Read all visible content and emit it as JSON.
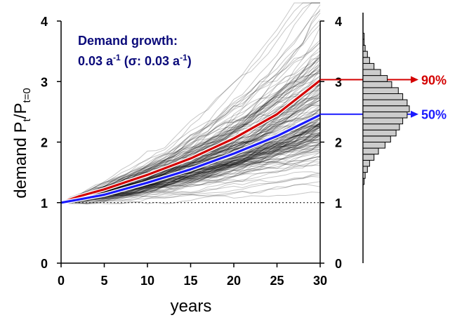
{
  "chart_data": [
    {
      "type": "line",
      "title": "",
      "annotation_line1": "Demand growth:",
      "annotation_line2_prefix": "0.03 a",
      "annotation_line2_mid": " (σ: 0.03 a",
      "annotation_line2_suffix": ")",
      "annotation_exponent": "-1",
      "xlabel": "years",
      "ylabel_main": "demand P",
      "ylabel_sub1": "t",
      "ylabel_slash": "/P",
      "ylabel_sub2": "t=0",
      "xlim": [
        0,
        30
      ],
      "ylim": [
        0,
        4
      ],
      "x_ticks": [
        "0",
        "5",
        "10",
        "15",
        "20",
        "25",
        "30"
      ],
      "y_ticks": [
        "0",
        "1",
        "2",
        "3",
        "4"
      ],
      "right_y_ticks": [
        "0",
        "1",
        "2",
        "3",
        "4"
      ],
      "baseline_y": 1,
      "ensemble": {
        "count": 200,
        "mean_growth": 0.03,
        "sigma": 0.03,
        "color": "#000000"
      },
      "series": [
        {
          "name": "90%",
          "color": "#d40000",
          "x": [
            0,
            2,
            5,
            10,
            15,
            20,
            25,
            30
          ],
          "y": [
            1.0,
            1.1,
            1.22,
            1.46,
            1.73,
            2.06,
            2.46,
            3.02
          ]
        },
        {
          "name": "50%",
          "color": "#1a1aff",
          "x": [
            0,
            2,
            5,
            10,
            15,
            20,
            25,
            30
          ],
          "y": [
            1.0,
            1.05,
            1.13,
            1.33,
            1.55,
            1.81,
            2.1,
            2.45
          ]
        }
      ],
      "grid": false,
      "legend": "right"
    },
    {
      "type": "histogram",
      "orientation": "horizontal",
      "bin_edges": [
        1.3,
        1.4,
        1.5,
        1.6,
        1.7,
        1.8,
        1.9,
        2.0,
        2.1,
        2.2,
        2.3,
        2.4,
        2.5,
        2.6,
        2.7,
        2.8,
        2.9,
        3.0,
        3.1,
        3.2,
        3.3,
        3.4,
        3.5,
        3.6,
        3.7,
        3.8
      ],
      "counts": [
        1,
        2,
        4,
        6,
        10,
        14,
        20,
        25,
        30,
        33,
        36,
        40,
        42,
        40,
        36,
        32,
        26,
        22,
        16,
        10,
        6,
        4,
        2,
        1,
        1
      ],
      "fill": "#cccccc"
    }
  ]
}
